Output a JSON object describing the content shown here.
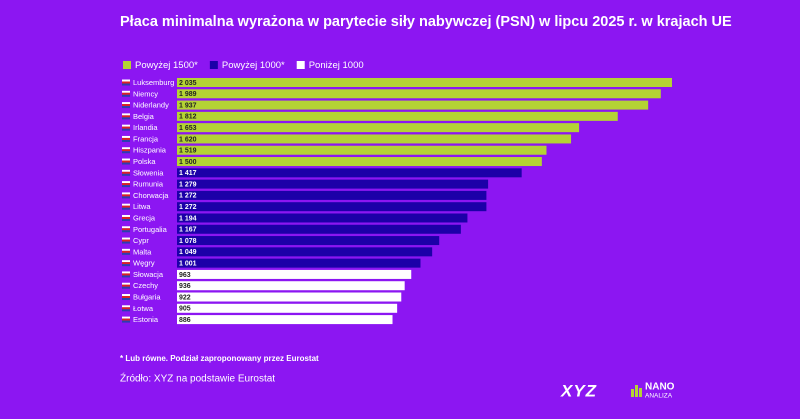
{
  "chart_data": {
    "type": "bar",
    "orientation": "horizontal",
    "title": "Płaca minimalna wyrażona w parytecie siły nabywczej (PSN) w lipcu 2025 r. w krajach UE",
    "legend": [
      {
        "name": "Powyżej 1500*",
        "color": "#b4d334"
      },
      {
        "name": "Powyżej 1000*",
        "color": "#1c00a8"
      },
      {
        "name": "Poniżej 1000",
        "color": "#ffffff"
      }
    ],
    "categories": [
      "Luksemburg",
      "Niemcy",
      "Niderlandy",
      "Belgia",
      "Irlandia",
      "Francja",
      "Hiszpania",
      "Polska",
      "Słowenia",
      "Rumunia",
      "Chorwacja",
      "Litwa",
      "Grecja",
      "Portugalia",
      "Cypr",
      "Malta",
      "Węgry",
      "Słowacja",
      "Czechy",
      "Bułgaria",
      "Łotwa",
      "Estonia"
    ],
    "values": [
      2035,
      1989,
      1937,
      1812,
      1653,
      1620,
      1519,
      1500,
      1417,
      1279,
      1272,
      1272,
      1194,
      1167,
      1078,
      1049,
      1001,
      963,
      936,
      922,
      905,
      886
    ],
    "value_labels": [
      "2 035",
      "1 989",
      "1 937",
      "1 812",
      "1 653",
      "1 620",
      "1 519",
      "1 500",
      "1 417",
      "1 279",
      "1 272",
      "1 272",
      "1 194",
      "1 167",
      "1 078",
      "1 049",
      "1 001",
      "963",
      "936",
      "922",
      "905",
      "886"
    ],
    "colors": [
      "#b4d334",
      "#b4d334",
      "#b4d334",
      "#b4d334",
      "#b4d334",
      "#b4d334",
      "#b4d334",
      "#b4d334",
      "#1c00a8",
      "#1c00a8",
      "#1c00a8",
      "#1c00a8",
      "#1c00a8",
      "#1c00a8",
      "#1c00a8",
      "#1c00a8",
      "#1c00a8",
      "#ffffff",
      "#ffffff",
      "#ffffff",
      "#ffffff",
      "#ffffff"
    ],
    "footnote": "* Lub równe. Podział zaproponowany przez Eurostat",
    "source": "Źródło: XYZ na podstawie Eurostat",
    "logos": [
      "XYZ",
      "NANO",
      "ANALIZA"
    ]
  }
}
